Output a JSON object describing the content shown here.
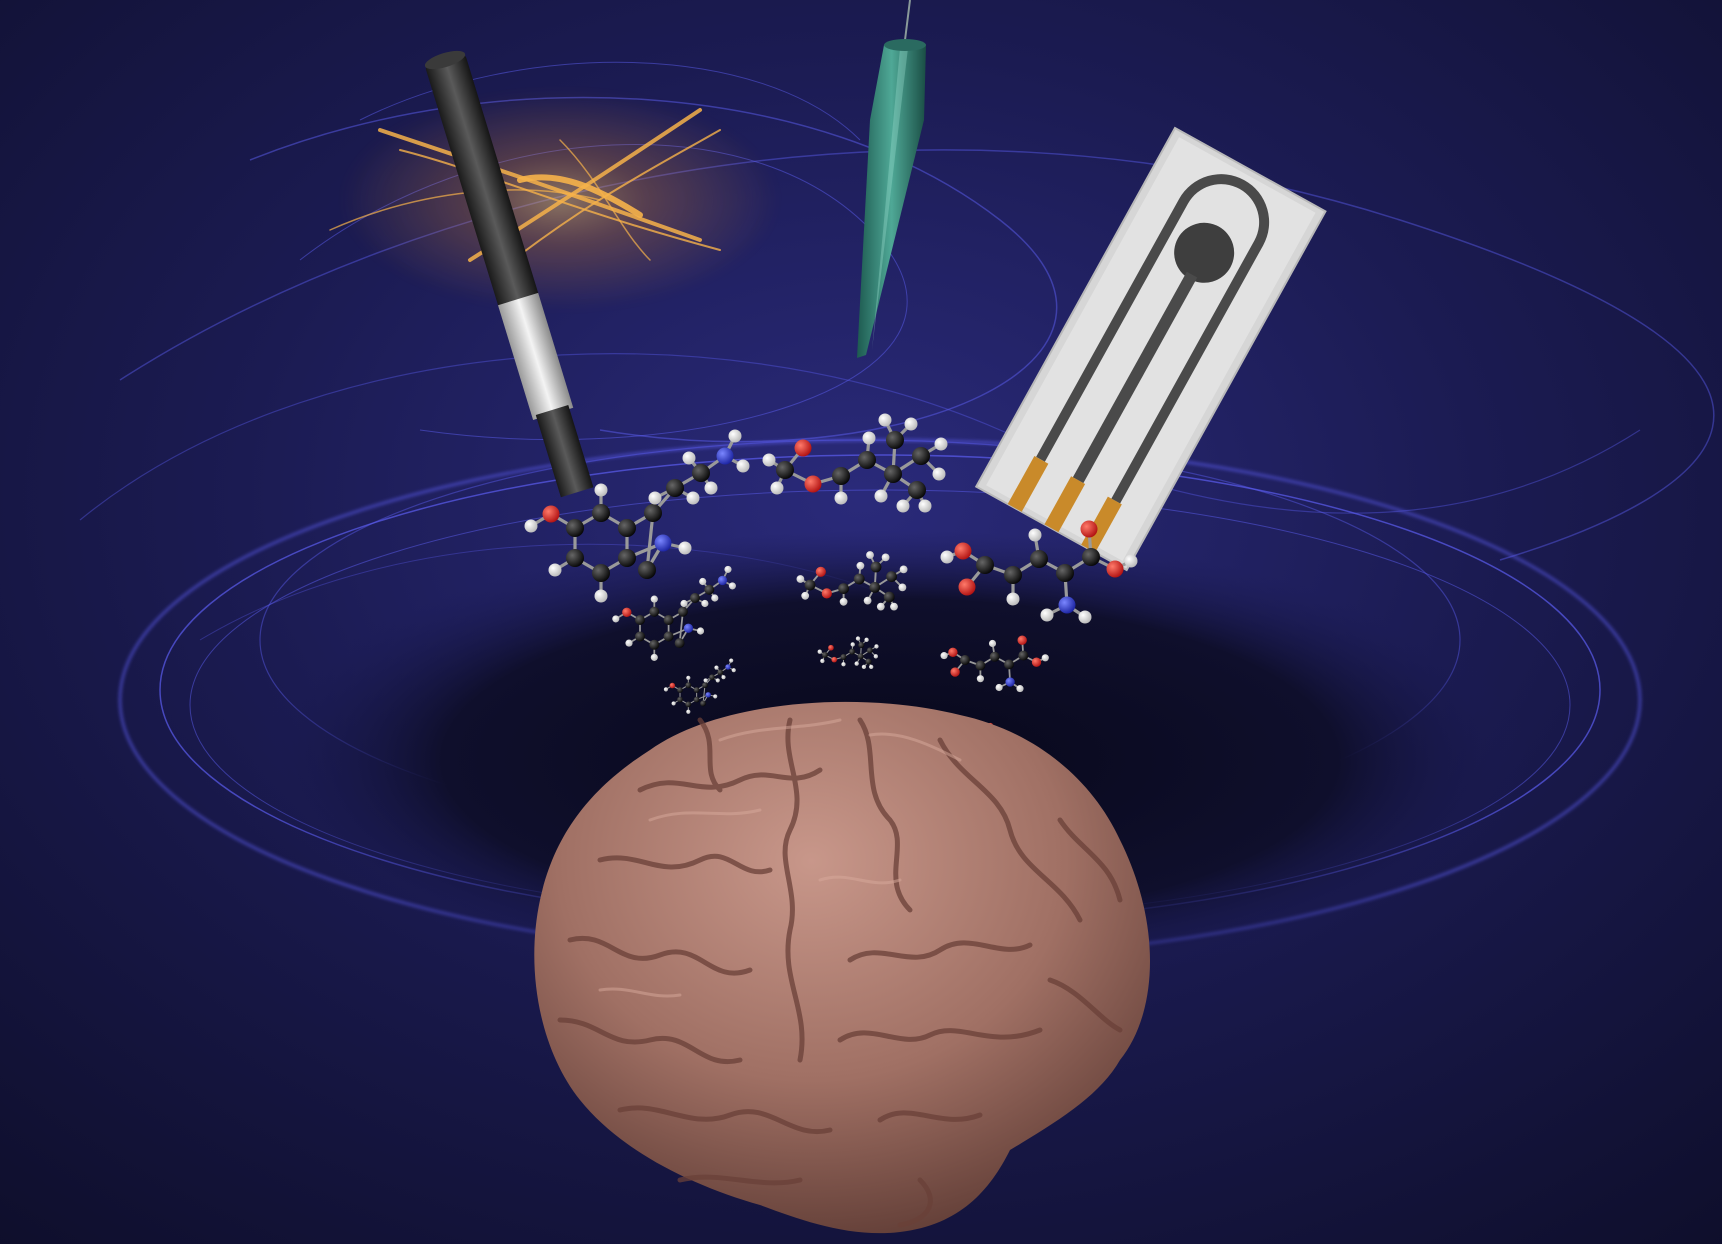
{
  "scene": {
    "kind": "scientific cover illustration",
    "colors": {
      "background": "#15163a",
      "swirl": "#4a4ce0",
      "swirl_glow": "#7d7fff",
      "flare": "#f2a83a",
      "brain": "#a8786a",
      "brain_shadow": "#5e3b34",
      "electrode_carbon": "#2a2a2a",
      "electrode_silver": "#cfcfcf",
      "micropipette": "#2c7a6c",
      "screen_printed_base": "#d6d6d6",
      "screen_printed_track": "#4a4a4a",
      "screen_printed_contact": "#c98a2a",
      "atom_carbon": "#111111",
      "atom_hydrogen": "#f2f2f2",
      "atom_oxygen": "#e0201e",
      "atom_nitrogen": "#2a3ad8"
    },
    "objects": {
      "rod_electrode": {
        "icon": "carbon-rod-electrode-icon"
      },
      "micropipette": {
        "icon": "glass-micropipette-icon"
      },
      "screen_printed_electrode": {
        "icon": "screen-printed-electrode-icon"
      },
      "brain": {
        "icon": "human-brain-icon"
      },
      "molecules": {
        "icon": "ball-and-stick-molecule-icon",
        "groups": [
          "left",
          "center",
          "right"
        ]
      }
    }
  }
}
